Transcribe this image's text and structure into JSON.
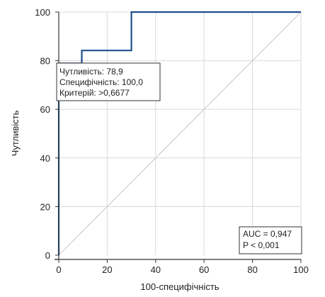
{
  "chart_data": {
    "type": "line",
    "xlabel": "100-специфічність",
    "ylabel": "Чутливість",
    "xlim": [
      0,
      100
    ],
    "ylim": [
      0,
      100
    ],
    "x_ticks": [
      0,
      20,
      40,
      60,
      80,
      100
    ],
    "y_ticks": [
      0,
      20,
      40,
      60,
      80,
      100
    ],
    "grid": true,
    "series": [
      {
        "color": "#1f4e8c",
        "x": [
          0,
          0,
          9.5,
          9.5,
          30,
          30,
          100
        ],
        "y": [
          0,
          78.9,
          78.9,
          84.2,
          84.2,
          100,
          100
        ]
      },
      {
        "color": "#c8c8c8",
        "x": [
          0,
          100
        ],
        "y": [
          0,
          100
        ]
      }
    ],
    "annotation": {
      "lines": [
        "Чутливість: 78,9",
        "Специфічність: 100,0",
        "Критерій: >0,6677"
      ]
    },
    "stats": {
      "lines": [
        "AUC = 0,947",
        "P < 0,001"
      ]
    }
  }
}
